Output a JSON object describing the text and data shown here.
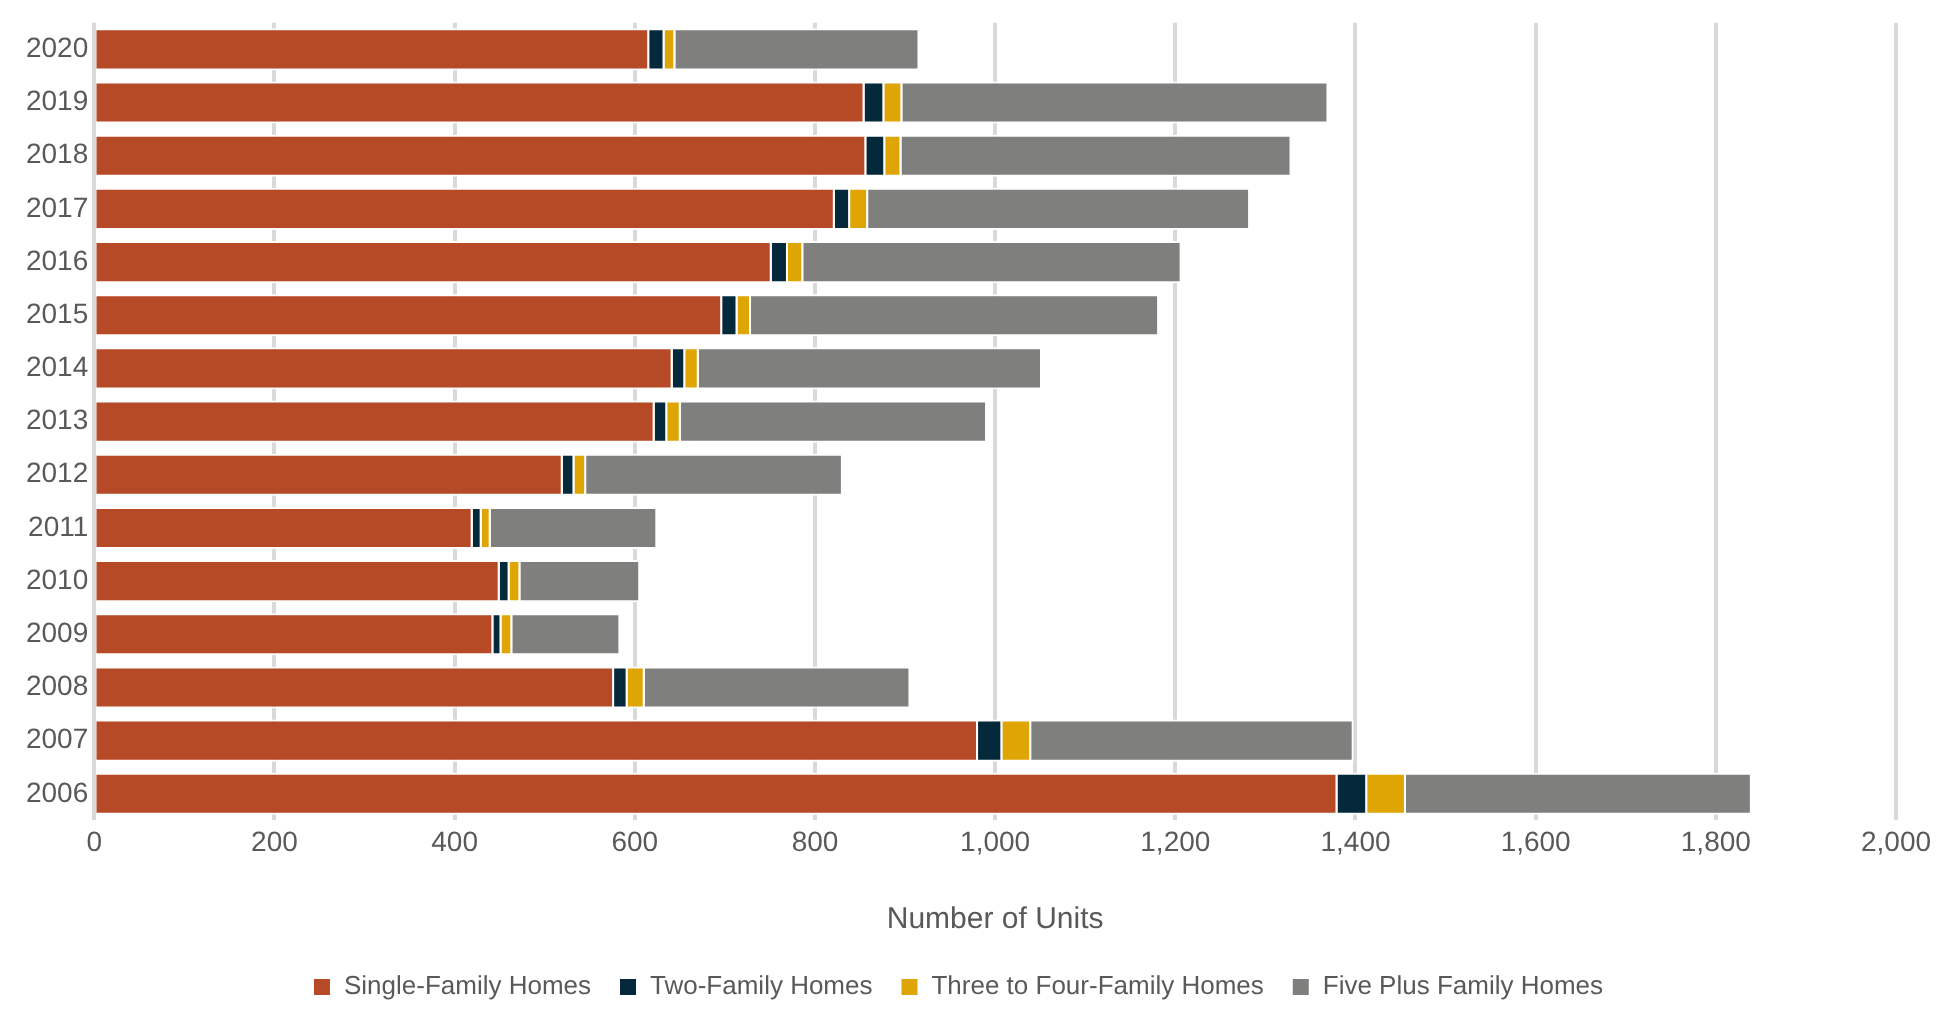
{
  "chart_data": {
    "type": "bar",
    "orientation": "horizontal",
    "stacked": true,
    "xlabel": "Number of Units",
    "categories": [
      "2020",
      "2019",
      "2018",
      "2017",
      "2016",
      "2015",
      "2014",
      "2013",
      "2012",
      "2011",
      "2010",
      "2009",
      "2008",
      "2007",
      "2006"
    ],
    "series": [
      {
        "name": "Single-Family Homes",
        "color": "#b64a26",
        "values": [
          616,
          855,
          857,
          822,
          752,
          697,
          642,
          622,
          520,
          420,
          450,
          443,
          577,
          981,
          1380
        ]
      },
      {
        "name": "Two-Family Homes",
        "color": "#03293a",
        "values": [
          17,
          22,
          21,
          17,
          18,
          17,
          14,
          14,
          13,
          10,
          11,
          9,
          15,
          27,
          33
        ]
      },
      {
        "name": "Three to Four-Family Homes",
        "color": "#dfa504",
        "values": [
          12,
          20,
          18,
          20,
          17,
          15,
          15,
          15,
          13,
          10,
          12,
          12,
          19,
          32,
          43
        ]
      },
      {
        "name": "Five Plus Family Homes",
        "color": "#7f7f7e",
        "values": [
          271,
          473,
          433,
          424,
          420,
          453,
          381,
          340,
          285,
          185,
          133,
          120,
          295,
          358,
          384
        ]
      }
    ],
    "xlim": [
      0,
      2000
    ],
    "xticks": [
      {
        "value": 0,
        "label": "0"
      },
      {
        "value": 200,
        "label": "200"
      },
      {
        "value": 400,
        "label": "400"
      },
      {
        "value": 600,
        "label": "600"
      },
      {
        "value": 800,
        "label": "800"
      },
      {
        "value": 1000,
        "label": "1,000"
      },
      {
        "value": 1200,
        "label": "1,200"
      },
      {
        "value": 1400,
        "label": "1,400"
      },
      {
        "value": 1600,
        "label": "1,600"
      },
      {
        "value": 1800,
        "label": "1,800"
      },
      {
        "value": 2000,
        "label": "2,000"
      }
    ],
    "grid": "x",
    "legend": "bottom"
  }
}
